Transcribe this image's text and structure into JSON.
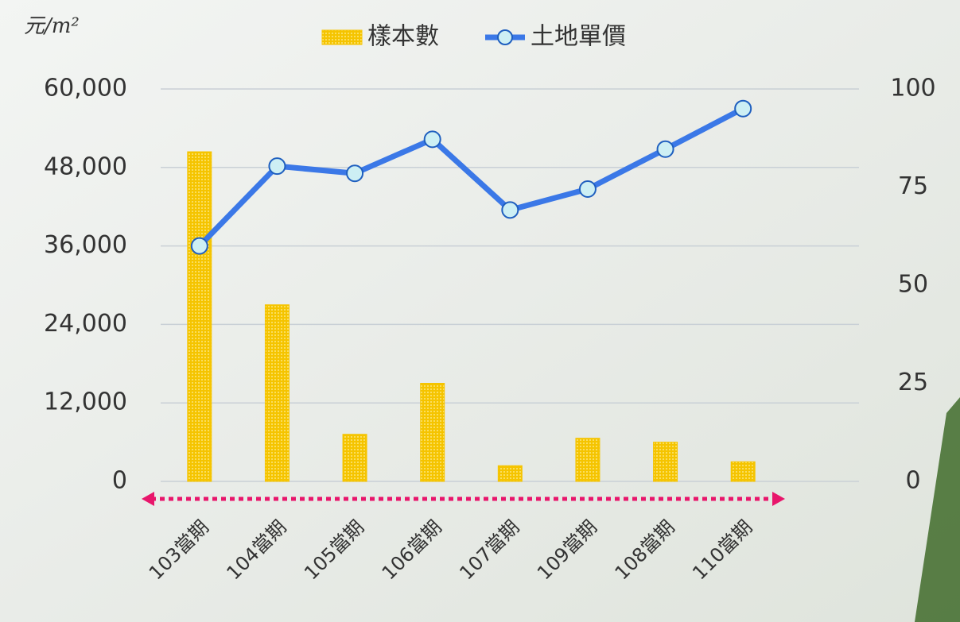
{
  "chart_data": {
    "type": "bar-line",
    "y_label": "元/m²",
    "categories": [
      "103當期",
      "104當期",
      "105當期",
      "106當期",
      "107當期",
      "109當期",
      "108當期",
      "110當期"
    ],
    "series": [
      {
        "name": "樣本數",
        "type": "bar",
        "axis": "y2",
        "color": "#f5c400",
        "values": [
          84,
          45,
          12,
          25,
          4,
          11,
          10,
          5
        ]
      },
      {
        "name": "土地單價",
        "type": "line",
        "color": "#3b78e7",
        "values": [
          36000,
          48200,
          47100,
          52300,
          41500,
          44700,
          50800,
          57000
        ]
      }
    ],
    "ylim": [
      0,
      60000
    ],
    "yticks": [
      0,
      {
        "value": 12000,
        "label": "12,000"
      },
      {
        "value": 24000,
        "label": "24,000"
      },
      {
        "value": 36000,
        "label": "36,000"
      },
      {
        "value": 48000,
        "label": "48,000"
      },
      {
        "value": 60000,
        "label": "60,000"
      }
    ],
    "y2lim": [
      0,
      100
    ],
    "y2ticks": [
      0,
      25,
      50,
      75,
      100
    ],
    "grid": true,
    "legend": "top"
  }
}
